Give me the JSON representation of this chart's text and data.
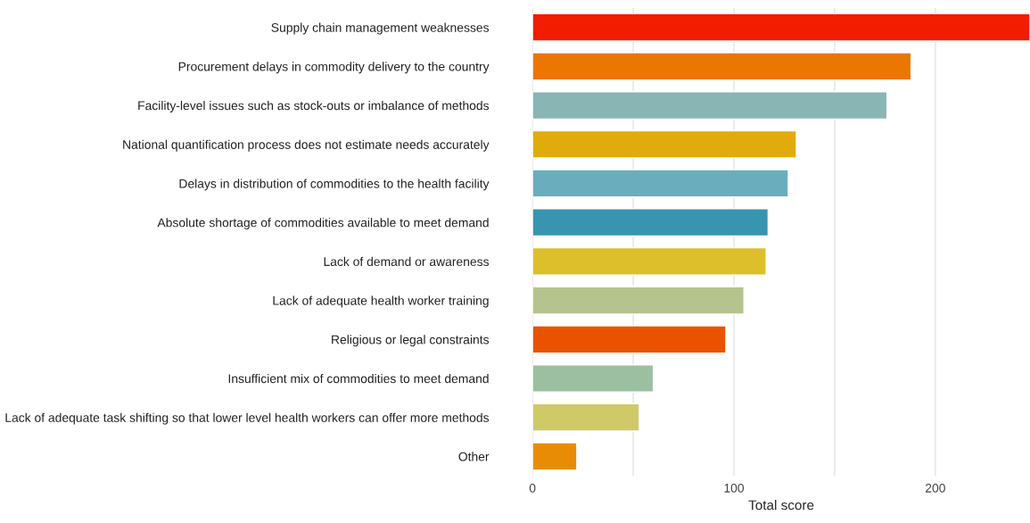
{
  "chart_data": {
    "type": "bar",
    "orientation": "horizontal",
    "xlabel": "Total score",
    "categories": [
      "Supply chain management weaknesses",
      "Procurement delays in commodity delivery to the country",
      "Facility-level issues such as stock-outs or imbalance of methods",
      "National quantification process does not estimate needs accurately",
      "Delays in distribution of commodities to the health facility",
      "Absolute shortage of commodities available to meet demand",
      "Lack of demand or awareness",
      "Lack of adequate health worker training",
      "Religious or legal constraints",
      "Insufficient mix of commodities to meet demand",
      "Lack of adequate task shifting so that lower level health workers can offer more methods",
      "Other"
    ],
    "values": [
      247,
      188,
      176,
      131,
      127,
      117,
      116,
      105,
      96,
      60,
      53,
      22
    ],
    "colors": [
      "#f21c00",
      "#ec7700",
      "#89b5b5",
      "#e1ab0b",
      "#6aaebd",
      "#3795b0",
      "#ddbf2c",
      "#b5c48c",
      "#eb5200",
      "#9dbfa1",
      "#cfc968",
      "#e98c05"
    ],
    "xlim": [
      0,
      247
    ],
    "xticks": [
      0,
      {
        "value": 50,
        "label": null
      },
      100,
      {
        "value": 150,
        "label": null
      },
      200
    ],
    "grid": "x",
    "legend": false
  }
}
